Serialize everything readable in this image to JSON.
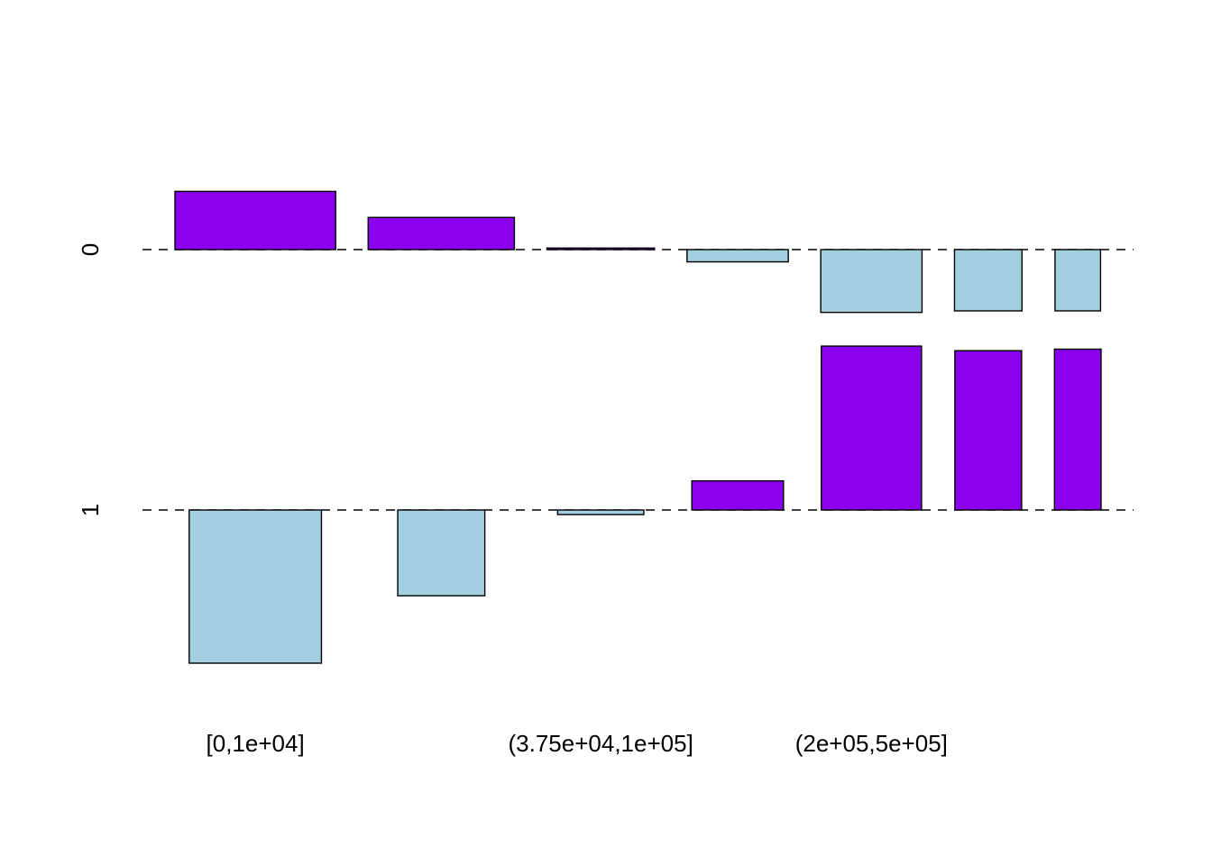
{
  "chart_data": {
    "type": "assocplot",
    "title": "",
    "xlabel": "",
    "ylabel": "",
    "rows": [
      "0",
      "1"
    ],
    "row_tick_labels": [
      "0",
      "1"
    ],
    "x_tick_labels": [
      "[0,1e+04]",
      "(3.75e+04,1e+05]",
      "(2e+05,5e+05]"
    ],
    "x_tick_label_columns": [
      0,
      2,
      4
    ],
    "columns": [
      {
        "width_share": 1.0,
        "row0_height": 0.38,
        "row1_height": -1.0
      },
      {
        "width_share": 0.91,
        "row0_height": 0.21,
        "row1_height": -0.56
      },
      {
        "width_share": 0.67,
        "row0_height": 0.01,
        "row1_height": -0.03
      },
      {
        "width_share": 0.63,
        "row0_height": -0.08,
        "row1_height": 0.19
      },
      {
        "width_share": 0.63,
        "row0_height": -0.41,
        "row1_height": 1.07
      },
      {
        "width_share": 0.42,
        "row0_height": -0.4,
        "row1_height": 1.04
      },
      {
        "width_share": 0.29,
        "row0_height": -0.4,
        "row1_height": 1.05
      }
    ],
    "bar_area_weights": [
      [
        66.5,
        -144.0
      ],
      [
        32.0,
        -50.8
      ],
      [
        1.0,
        -2.4
      ],
      [
        -6.0,
        12.9
      ],
      [
        -26.0,
        67.2
      ],
      [
        -16.8,
        43.2
      ],
      [
        -11.2,
        30.1
      ]
    ],
    "colors": {
      "positive": "#8a00ee",
      "negative": "#a2d0e1",
      "outline": "#000000",
      "baseline": "#000000"
    }
  }
}
